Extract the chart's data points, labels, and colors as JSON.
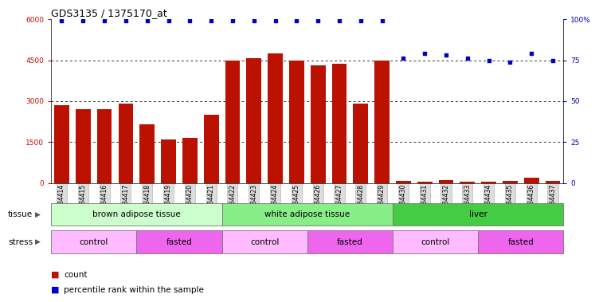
{
  "title": "GDS3135 / 1375170_at",
  "samples": [
    "GSM184414",
    "GSM184415",
    "GSM184416",
    "GSM184417",
    "GSM184418",
    "GSM184419",
    "GSM184420",
    "GSM184421",
    "GSM184422",
    "GSM184423",
    "GSM184424",
    "GSM184425",
    "GSM184426",
    "GSM184427",
    "GSM184428",
    "GSM184429",
    "GSM184430",
    "GSM184431",
    "GSM184432",
    "GSM184433",
    "GSM184434",
    "GSM184435",
    "GSM184436",
    "GSM184437"
  ],
  "counts": [
    2850,
    2700,
    2700,
    2900,
    2150,
    1600,
    1650,
    2500,
    4480,
    4580,
    4750,
    4500,
    4320,
    4380,
    2920,
    4500,
    70,
    50,
    110,
    55,
    50,
    70,
    180,
    65
  ],
  "percentile": [
    99,
    99,
    99,
    99,
    99,
    99,
    99,
    99,
    99,
    99,
    99,
    99,
    99,
    99,
    99,
    99,
    76,
    79,
    78,
    76,
    75,
    74,
    79,
    75
  ],
  "tissue_groups": [
    {
      "label": "brown adipose tissue",
      "start": 0,
      "end": 7,
      "color": "#ccffcc"
    },
    {
      "label": "white adipose tissue",
      "start": 8,
      "end": 15,
      "color": "#88ee88"
    },
    {
      "label": "liver",
      "start": 16,
      "end": 23,
      "color": "#44cc44"
    }
  ],
  "stress_groups": [
    {
      "label": "control",
      "start": 0,
      "end": 3,
      "color": "#ffbbff"
    },
    {
      "label": "fasted",
      "start": 4,
      "end": 7,
      "color": "#ee66ee"
    },
    {
      "label": "control",
      "start": 8,
      "end": 11,
      "color": "#ffbbff"
    },
    {
      "label": "fasted",
      "start": 12,
      "end": 15,
      "color": "#ee66ee"
    },
    {
      "label": "control",
      "start": 16,
      "end": 19,
      "color": "#ffbbff"
    },
    {
      "label": "fasted",
      "start": 20,
      "end": 23,
      "color": "#ee66ee"
    }
  ],
  "bar_color": "#bb1100",
  "dot_color": "#0000cc",
  "ylim_left": [
    0,
    6000
  ],
  "ylim_right": [
    0,
    100
  ],
  "yticks_left": [
    0,
    1500,
    3000,
    4500,
    6000
  ],
  "yticks_right": [
    0,
    25,
    50,
    75,
    100
  ],
  "ytick_labels_left": [
    "0",
    "1500",
    "3000",
    "4500",
    "6000"
  ],
  "ytick_labels_right": [
    "0",
    "25",
    "50",
    "75",
    "100%"
  ],
  "bg_color": "#ffffff",
  "grid_color": "#000000",
  "title_fontsize": 9,
  "tick_fontsize": 6.5,
  "label_fontsize": 7.5,
  "xtick_fontsize": 5.5
}
